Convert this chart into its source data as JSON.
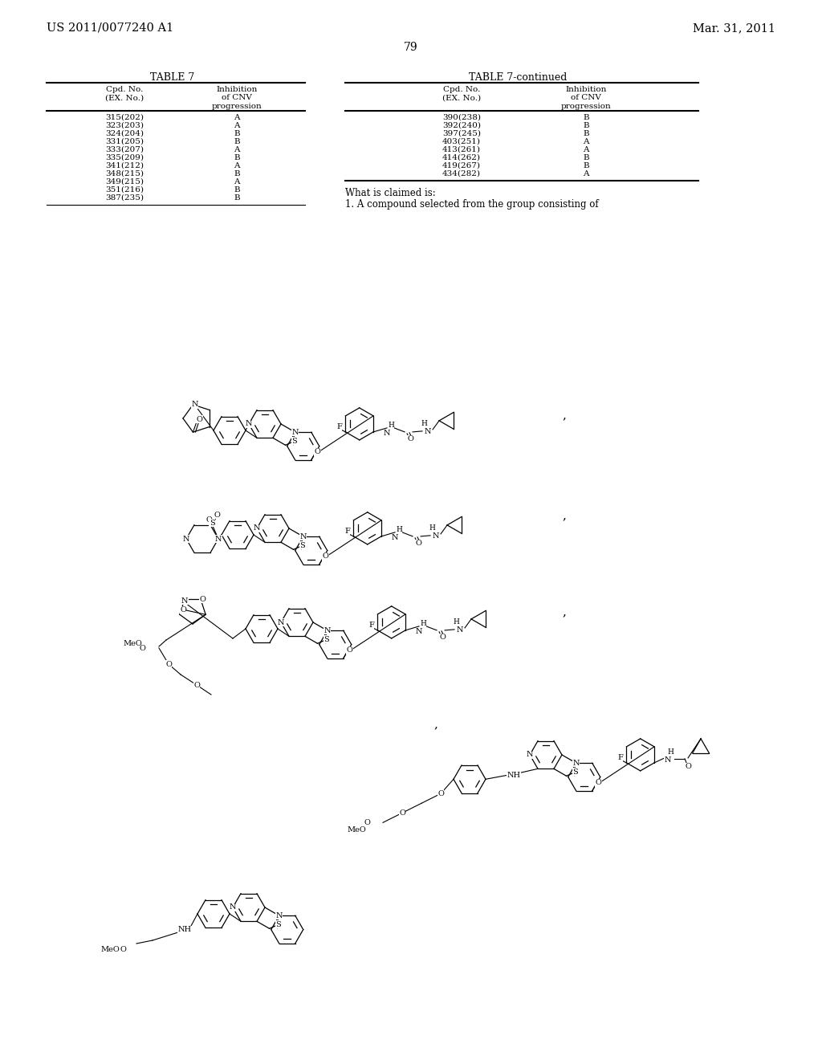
{
  "page_header_left": "US 2011/0077240 A1",
  "page_header_right": "Mar. 31, 2011",
  "page_number": "79",
  "table1_title": "TABLE 7",
  "table1_data": [
    [
      "315(202)",
      "A"
    ],
    [
      "323(203)",
      "A"
    ],
    [
      "324(204)",
      "B"
    ],
    [
      "331(205)",
      "B"
    ],
    [
      "333(207)",
      "A"
    ],
    [
      "335(209)",
      "B"
    ],
    [
      "341(212)",
      "A"
    ],
    [
      "348(215)",
      "B"
    ],
    [
      "349(215)",
      "A"
    ],
    [
      "351(216)",
      "B"
    ],
    [
      "387(235)",
      "B"
    ]
  ],
  "table2_title": "TABLE 7-continued",
  "table2_data": [
    [
      "390(238)",
      "B"
    ],
    [
      "392(240)",
      "B"
    ],
    [
      "397(245)",
      "B"
    ],
    [
      "403(251)",
      "A"
    ],
    [
      "413(261)",
      "A"
    ],
    [
      "414(262)",
      "B"
    ],
    [
      "419(267)",
      "B"
    ],
    [
      "434(282)",
      "A"
    ]
  ],
  "claim_header": "What is claimed is:",
  "claim_text": "1. A compound selected from the group consisting of",
  "bg_color": "#ffffff",
  "text_color": "#000000"
}
